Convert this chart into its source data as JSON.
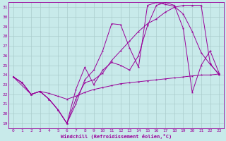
{
  "xlabel": "Windchill (Refroidissement éolien,°C)",
  "bg_color": "#c8eaea",
  "line_color": "#990099",
  "grid_color": "#aacccc",
  "xlim": [
    -0.5,
    23.5
  ],
  "ylim": [
    18.5,
    31.5
  ],
  "yticks": [
    19,
    20,
    21,
    22,
    23,
    24,
    25,
    26,
    27,
    28,
    29,
    30,
    31
  ],
  "xticks": [
    0,
    1,
    2,
    3,
    4,
    5,
    6,
    7,
    8,
    9,
    10,
    11,
    12,
    13,
    14,
    15,
    16,
    17,
    18,
    19,
    20,
    21,
    22,
    23
  ],
  "line1": {
    "x": [
      0,
      1,
      2,
      3,
      4,
      5,
      6,
      7,
      8,
      9,
      10,
      11,
      12,
      13,
      14,
      15,
      16,
      17,
      18,
      19,
      20,
      21,
      22,
      23
    ],
    "y": [
      23.8,
      23.2,
      22.0,
      22.3,
      22.1,
      21.8,
      21.5,
      21.8,
      22.2,
      22.5,
      22.7,
      22.9,
      23.1,
      23.2,
      23.3,
      23.4,
      23.5,
      23.6,
      23.7,
      23.8,
      23.9,
      24.0,
      24.0,
      24.1
    ]
  },
  "line2": {
    "x": [
      0,
      1,
      2,
      3,
      4,
      5,
      6,
      7,
      8,
      9,
      10,
      11,
      12,
      13,
      14,
      15,
      16,
      17,
      18,
      19,
      20,
      21,
      22,
      23
    ],
    "y": [
      23.8,
      23.2,
      22.0,
      22.3,
      21.5,
      20.4,
      19.0,
      21.0,
      23.5,
      24.5,
      26.5,
      29.3,
      29.2,
      26.8,
      24.8,
      31.2,
      31.5,
      31.3,
      31.1,
      30.3,
      28.5,
      26.3,
      25.1,
      24.1
    ]
  },
  "line3": {
    "x": [
      0,
      1,
      2,
      3,
      4,
      5,
      6,
      7,
      8,
      9,
      10,
      11,
      12,
      13,
      14,
      15,
      16,
      17,
      18,
      19,
      20,
      21,
      22,
      23
    ],
    "y": [
      23.8,
      23.2,
      22.0,
      22.3,
      21.5,
      20.4,
      19.0,
      21.5,
      23.2,
      23.5,
      24.2,
      25.5,
      26.5,
      27.5,
      28.5,
      29.3,
      29.8,
      30.5,
      31.0,
      31.2,
      31.2,
      31.2,
      25.2,
      24.0
    ]
  },
  "line4": {
    "x": [
      0,
      2,
      3,
      4,
      5,
      6,
      7,
      8,
      9,
      10,
      11,
      12,
      13,
      14,
      15,
      16,
      17,
      18,
      19,
      20,
      21,
      22,
      23
    ],
    "y": [
      23.8,
      22.0,
      22.3,
      21.5,
      20.4,
      19.0,
      22.5,
      24.8,
      23.0,
      24.5,
      25.3,
      25.0,
      24.5,
      26.0,
      29.1,
      31.2,
      31.5,
      31.2,
      28.8,
      22.2,
      25.0,
      26.5,
      24.2
    ]
  }
}
